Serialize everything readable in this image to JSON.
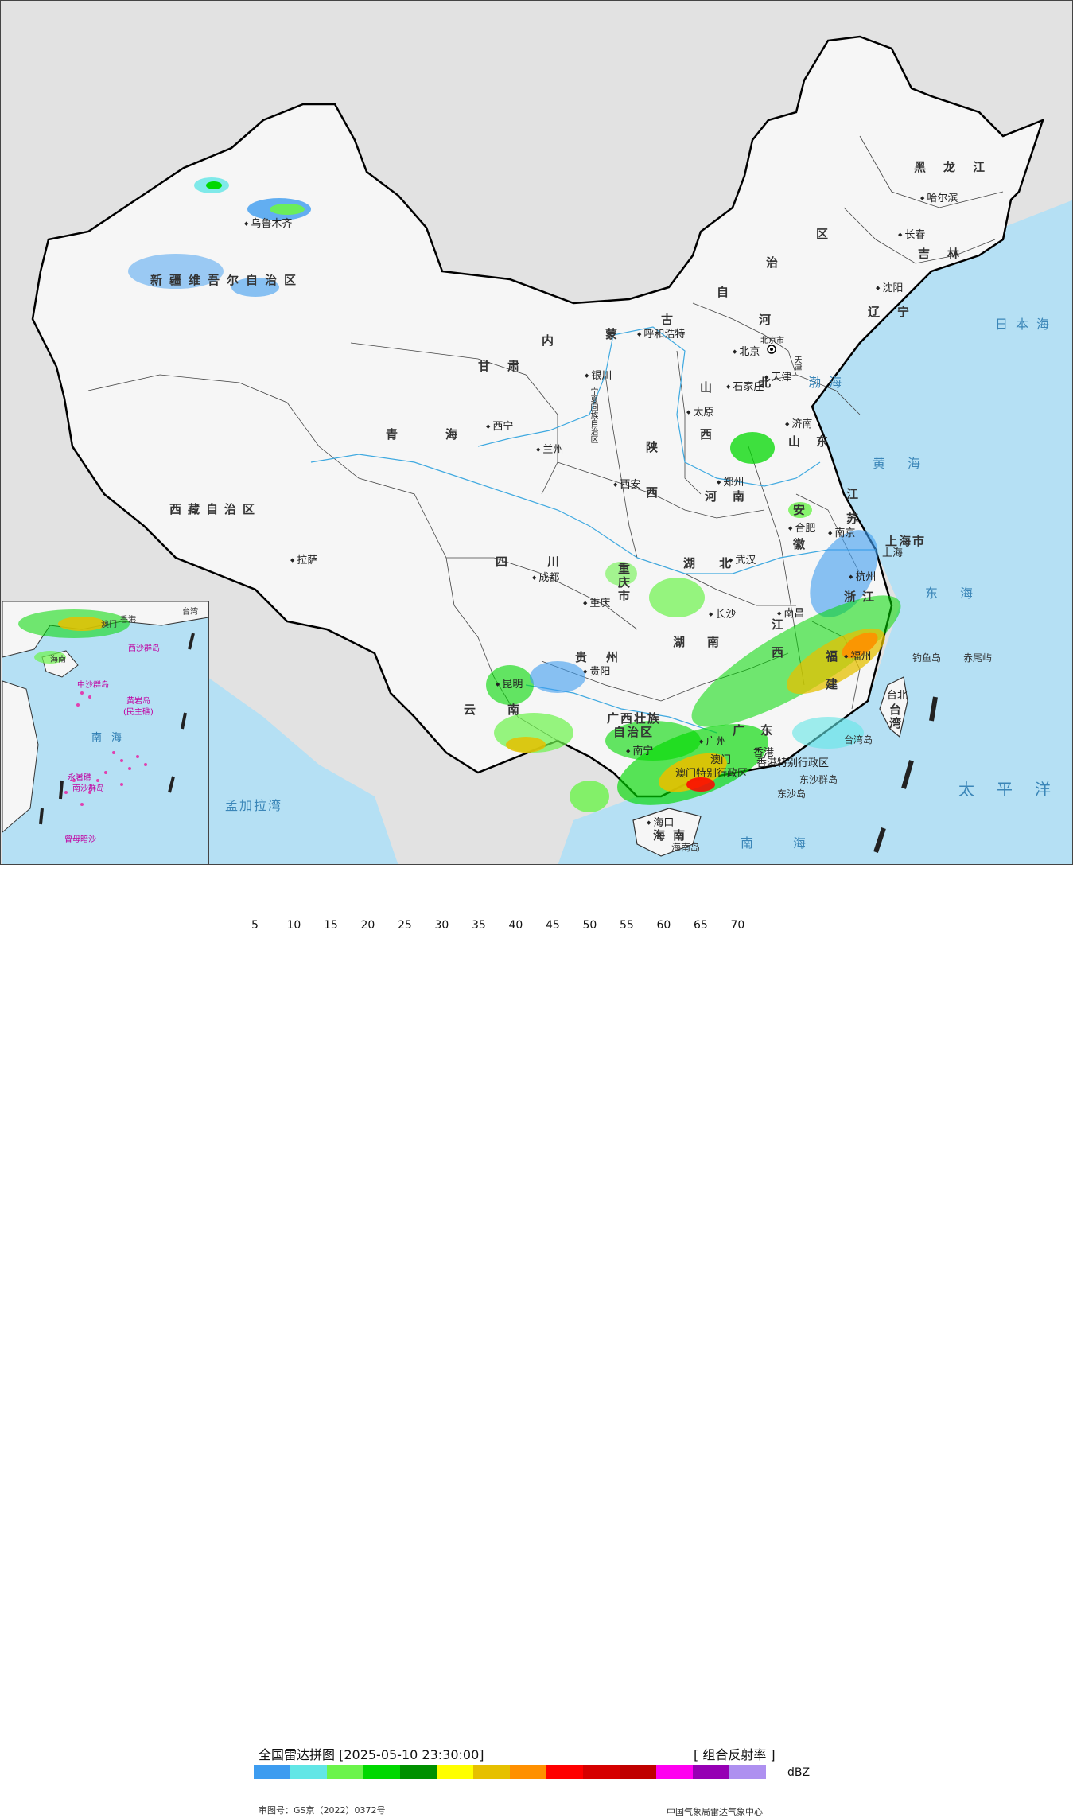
{
  "map": {
    "provinces": [
      {
        "id": "heilongjiang",
        "text": "黑龙江"
      },
      {
        "id": "jilin",
        "text": "吉林"
      },
      {
        "id": "liaoning",
        "text": "辽宁"
      },
      {
        "id": "neimenggu-1",
        "text": "内"
      },
      {
        "id": "neimenggu-2",
        "text": "蒙"
      },
      {
        "id": "neimenggu-3",
        "text": "古"
      },
      {
        "id": "neimenggu-4",
        "text": "自"
      },
      {
        "id": "neimenggu-5",
        "text": "治"
      },
      {
        "id": "neimenggu-6",
        "text": "区"
      },
      {
        "id": "xinjiang",
        "text": "新疆维吾尔自治区"
      },
      {
        "id": "xizang",
        "text": "西藏自治区"
      },
      {
        "id": "qinghai",
        "text": "青海"
      },
      {
        "id": "gansu",
        "text": "甘肃"
      },
      {
        "id": "sichuan",
        "text": "四川"
      },
      {
        "id": "yunnan",
        "text": "云南"
      },
      {
        "id": "guizhou",
        "text": "贵州"
      },
      {
        "id": "guangxi-1",
        "text": "广西壮族"
      },
      {
        "id": "guangxi-2",
        "text": "自治区"
      },
      {
        "id": "guangdong",
        "text": "广东"
      },
      {
        "id": "hunan",
        "text": "湖南"
      },
      {
        "id": "hubei",
        "text": "湖北"
      },
      {
        "id": "jiangxi",
        "text": "江西"
      },
      {
        "id": "fujian",
        "text": "福建"
      },
      {
        "id": "zhejiang",
        "text": "浙江"
      },
      {
        "id": "jiangsu",
        "text": "江苏"
      },
      {
        "id": "anhui",
        "text": "安徽"
      },
      {
        "id": "shandong",
        "text": "山东"
      },
      {
        "id": "henan",
        "text": "河南"
      },
      {
        "id": "hebei",
        "text": "河北"
      },
      {
        "id": "shanxi",
        "text": "山西"
      },
      {
        "id": "shaanxi",
        "text": "陕西"
      },
      {
        "id": "chongqing",
        "text": "重庆市"
      },
      {
        "id": "shanghai",
        "text": "上海市"
      },
      {
        "id": "hainan",
        "text": "海南"
      },
      {
        "id": "taiwan",
        "text": "台湾"
      },
      {
        "id": "ningxia",
        "text": "宁夏回族自治区"
      },
      {
        "id": "beijing-shi",
        "text": "北京市"
      },
      {
        "id": "tianjin-shi",
        "text": "天津"
      },
      {
        "id": "xianggang",
        "text": "香港特别行政区"
      },
      {
        "id": "aomen",
        "text": "澳门特别行政区"
      }
    ],
    "cities": [
      {
        "id": "harbin",
        "text": "哈尔滨"
      },
      {
        "id": "changchun",
        "text": "长春"
      },
      {
        "id": "shenyang",
        "text": "沈阳"
      },
      {
        "id": "hohhot",
        "text": "呼和浩特"
      },
      {
        "id": "beijing",
        "text": "北京"
      },
      {
        "id": "tianjin",
        "text": "天津"
      },
      {
        "id": "shijiazhuang",
        "text": "石家庄"
      },
      {
        "id": "taiyuan",
        "text": "太原"
      },
      {
        "id": "jinan",
        "text": "济南"
      },
      {
        "id": "zhengzhou",
        "text": "郑州"
      },
      {
        "id": "xian",
        "text": "西安"
      },
      {
        "id": "yinchuan",
        "text": "银川"
      },
      {
        "id": "lanzhou",
        "text": "兰州"
      },
      {
        "id": "xining",
        "text": "西宁"
      },
      {
        "id": "urumqi",
        "text": "乌鲁木齐"
      },
      {
        "id": "lhasa",
        "text": "拉萨"
      },
      {
        "id": "chengdu",
        "text": "成都"
      },
      {
        "id": "chongqing-c",
        "text": "重庆"
      },
      {
        "id": "guiyang",
        "text": "贵阳"
      },
      {
        "id": "kunming",
        "text": "昆明"
      },
      {
        "id": "nanning",
        "text": "南宁"
      },
      {
        "id": "guangzhou",
        "text": "广州"
      },
      {
        "id": "xianggang-c",
        "text": "香港"
      },
      {
        "id": "aomen-c",
        "text": "澳门"
      },
      {
        "id": "haikou",
        "text": "海口"
      },
      {
        "id": "changsha",
        "text": "长沙"
      },
      {
        "id": "wuhan",
        "text": "武汉"
      },
      {
        "id": "nanchang",
        "text": "南昌"
      },
      {
        "id": "fuzhou",
        "text": "福州"
      },
      {
        "id": "hangzhou",
        "text": "杭州"
      },
      {
        "id": "nanjing",
        "text": "南京"
      },
      {
        "id": "hefei",
        "text": "合肥"
      },
      {
        "id": "shanghai-c",
        "text": "上海"
      },
      {
        "id": "taibei",
        "text": "台北"
      }
    ],
    "seas": [
      {
        "id": "japan-sea",
        "text": "日本海"
      },
      {
        "id": "bohai",
        "text": "渤海"
      },
      {
        "id": "yellow-sea",
        "text": "黄海"
      },
      {
        "id": "east-sea",
        "text": "东海"
      },
      {
        "id": "pacific",
        "text": "太平洋"
      },
      {
        "id": "south-sea",
        "text": "南海"
      },
      {
        "id": "bengal",
        "text": "孟加拉湾"
      }
    ],
    "islands": [
      {
        "id": "diaoyu",
        "text": "钓鱼岛"
      },
      {
        "id": "chiwei",
        "text": "赤尾屿"
      },
      {
        "id": "taiwan-island",
        "text": "台湾岛"
      },
      {
        "id": "hainan-island",
        "text": "海南岛"
      },
      {
        "id": "dongsha-qundao",
        "text": "东沙群岛"
      },
      {
        "id": "dongsha-dao",
        "text": "东沙岛"
      }
    ],
    "inset": {
      "labels": [
        "南海",
        "西沙群岛",
        "中沙群岛",
        "黄岩岛",
        "(民主礁)",
        "永暑礁",
        "南沙群岛",
        "曾母暗沙",
        "香港",
        "澳门",
        "台湾",
        "海南"
      ]
    }
  },
  "legend": {
    "title": "全国雷达拼图 [2025-05-10 23:30:00]",
    "product": "[ 组合反射率 ]",
    "unit": "dBZ",
    "colors": [
      "#3d9cf0",
      "#62e6e6",
      "#6cf44b",
      "#00d800",
      "#009000",
      "#ffff00",
      "#e6c000",
      "#ff9000",
      "#ff0000",
      "#d60000",
      "#c00000",
      "#ff00f0",
      "#9600b4",
      "#ae90f0"
    ],
    "ticks": [
      "5",
      "10",
      "15",
      "20",
      "25",
      "30",
      "35",
      "40",
      "45",
      "50",
      "55",
      "60",
      "65",
      "70"
    ],
    "approval": "审图号：GS京（2022）0372号",
    "producer": "中国气象局雷达气象中心"
  }
}
